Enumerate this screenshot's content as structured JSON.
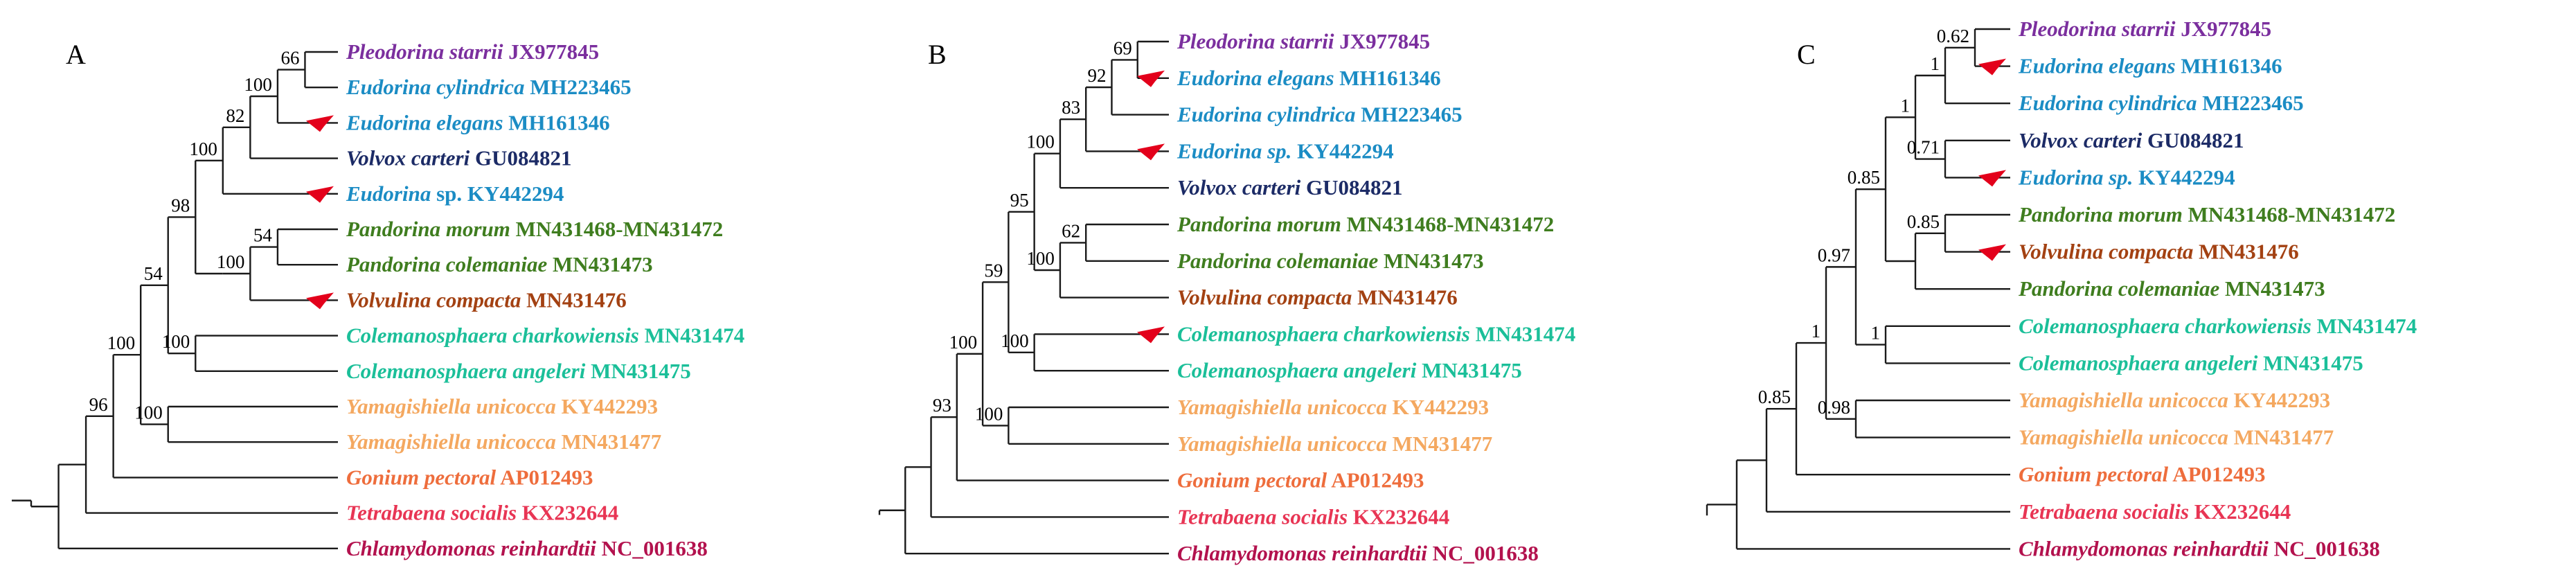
{
  "colors": {
    "pleodorina": "#7b2f9e",
    "eudorina": "#1b8cc4",
    "volvox": "#1c2b66",
    "pandorina": "#3f7d1f",
    "volvulina": "#a34112",
    "colemanosphaera": "#1bbf99",
    "yamagishiella": "#f4a860",
    "gonium": "#ee6d3c",
    "tetrabaena": "#e83554",
    "chlamydomonas": "#b3124e",
    "arrow": "#e3001b"
  },
  "taxa": {
    "pleodorina_starrii": {
      "species": "Pleodorina starrii",
      "accession": "JX977845",
      "color_key": "pleodorina"
    },
    "eudorina_cylindrica": {
      "species": "Eudorina cylindrica",
      "accession": "MH223465",
      "color_key": "eudorina"
    },
    "eudorina_elegans": {
      "species": "Eudorina elegans",
      "accession": "MH161346",
      "color_key": "eudorina"
    },
    "volvox_carteri": {
      "species": "Volvox carteri",
      "accession": "GU084821",
      "color_key": "volvox"
    },
    "eudorina_sp_a": {
      "species": "Eudorina",
      "accession": "sp. KY442294",
      "color_key": "eudorina"
    },
    "eudorina_sp_bc": {
      "species": "Eudorina sp.",
      "accession": "KY442294",
      "color_key": "eudorina"
    },
    "pandorina_morum": {
      "species": "Pandorina morum",
      "accession": "MN431468-MN431472",
      "color_key": "pandorina"
    },
    "pandorina_colemaniae": {
      "species": "Pandorina colemaniae",
      "accession": "MN431473",
      "color_key": "pandorina"
    },
    "volvulina_compacta": {
      "species": "Volvulina compacta",
      "accession": "MN431476",
      "color_key": "volvulina"
    },
    "colemanosphaera_charkowiensis": {
      "species": "Colemanosphaera charkowiensis",
      "accession": "MN431474",
      "color_key": "colemanosphaera"
    },
    "colemanosphaera_angeleri": {
      "species": "Colemanosphaera angeleri",
      "accession": "MN431475",
      "color_key": "colemanosphaera"
    },
    "yamagishiella_kyl": {
      "species": "Yamagishiella unicocca",
      "accession": "KY442293",
      "color_key": "yamagishiella"
    },
    "yamagishiella_mn": {
      "species": "Yamagishiella unicocca",
      "accession": "MN431477",
      "color_key": "yamagishiella"
    },
    "gonium_pectoral": {
      "species": "Gonium pectoral",
      "accession": "AP012493",
      "color_key": "gonium"
    },
    "tetrabaena_socialis": {
      "species": "Tetrabaena socialis",
      "accession": "KX232644",
      "color_key": "tetrabaena"
    },
    "chlamydomonas_reinhardtii": {
      "species": "Chlamydomonas reinhardtii",
      "accession": "NC_001638",
      "color_key": "chlamydomonas"
    }
  },
  "panels": [
    {
      "id": "A",
      "label": "A",
      "tips": [
        "pleodorina_starrii",
        "eudorina_cylindrica",
        "eudorina_elegans",
        "volvox_carteri",
        "eudorina_sp_a",
        "pandorina_morum",
        "pandorina_colemaniae",
        "volvulina_compacta",
        "colemanosphaera_charkowiensis",
        "colemanosphaera_angeleri",
        "yamagishiella_kyl",
        "yamagishiella_mn",
        "gonium_pectoral",
        "tetrabaena_socialis",
        "chlamydomonas_reinhardtii"
      ],
      "marked_tips": [
        2,
        4,
        7
      ],
      "has_root_stub": true,
      "tree": {
        "children": [
          {
            "children": [
              {
                "children": [
                  {
                    "support": "96",
                    "children": [
                      {
                        "support": "100",
                        "children": [
                          {
                            "support": "54",
                            "children": [
                              {
                                "support": "98",
                                "children": [
                                  {
                                    "support": "100",
                                    "children": [
                                      {
                                        "support": "82",
                                        "children": [
                                          {
                                            "support": "100",
                                            "children": [
                                              {
                                                "support": "66",
                                                "children": [
                                                  {
                                                    "tip": 0
                                                  },
                                                  {
                                                    "tip": 1
                                                  }
                                                ]
                                              },
                                              {
                                                "tip": 2
                                              }
                                            ]
                                          },
                                          {
                                            "tip": 3
                                          }
                                        ]
                                      },
                                      {
                                        "tip": 4
                                      }
                                    ]
                                  },
                                  {
                                    "children": [
                                      {
                                        "support": "100",
                                        "children": [
                                          {
                                            "support": "54",
                                            "children": [
                                              {
                                                "tip": 5
                                              },
                                              {
                                                "tip": 6
                                              }
                                            ]
                                          },
                                          {
                                            "tip": 7
                                          }
                                        ]
                                      }
                                    ]
                                  }
                                ]
                              },
                              {
                                "support": "100",
                                "children": [
                                  {
                                    "tip": 8
                                  },
                                  {
                                    "tip": 9
                                  }
                                ]
                              }
                            ]
                          },
                          {
                            "support": "100",
                            "children": [
                              {
                                "tip": 10
                              },
                              {
                                "tip": 11
                              }
                            ]
                          }
                        ]
                      },
                      {
                        "tip": 12
                      }
                    ]
                  },
                  {
                    "tip": 13
                  }
                ]
              },
              {
                "tip": 14
              }
            ]
          }
        ]
      }
    },
    {
      "id": "B",
      "label": "B",
      "tips": [
        "pleodorina_starrii",
        "eudorina_elegans",
        "eudorina_cylindrica",
        "eudorina_sp_bc",
        "volvox_carteri",
        "pandorina_morum",
        "pandorina_colemaniae",
        "volvulina_compacta",
        "colemanosphaera_charkowiensis",
        "colemanosphaera_angeleri",
        "yamagishiella_kyl",
        "yamagishiella_mn",
        "gonium_pectoral",
        "tetrabaena_socialis",
        "chlamydomonas_reinhardtii"
      ],
      "marked_tips": [
        1,
        3,
        8
      ],
      "has_root_stub": false,
      "tree": {
        "children": [
          {
            "children": [
              {
                "children": [
                  {
                    "support": "93",
                    "children": [
                      {
                        "support": "100",
                        "children": [
                          {
                            "support": "59",
                            "children": [
                              {
                                "support": "95",
                                "children": [
                                  {
                                    "support": "100",
                                    "children": [
                                      {
                                        "support": "83",
                                        "children": [
                                          {
                                            "support": "92",
                                            "children": [
                                              {
                                                "support": "69",
                                                "children": [
                                                  {
                                                    "tip": 0
                                                  },
                                                  {
                                                    "tip": 1
                                                  }
                                                ]
                                              },
                                              {
                                                "tip": 2
                                              }
                                            ]
                                          },
                                          {
                                            "tip": 3
                                          }
                                        ]
                                      },
                                      {
                                        "tip": 4
                                      }
                                    ]
                                  },
                                  {
                                    "support": "100",
                                    "children": [
                                      {
                                        "support": "62",
                                        "children": [
                                          {
                                            "tip": 5
                                          },
                                          {
                                            "tip": 6
                                          }
                                        ]
                                      },
                                      {
                                        "tip": 7
                                      }
                                    ]
                                  }
                                ]
                              },
                              {
                                "support": "100",
                                "children": [
                                  {
                                    "tip": 8
                                  },
                                  {
                                    "tip": 9
                                  }
                                ]
                              }
                            ]
                          },
                          {
                            "support": "100",
                            "children": [
                              {
                                "tip": 10
                              },
                              {
                                "tip": 11
                              }
                            ]
                          }
                        ]
                      },
                      {
                        "tip": 12
                      }
                    ]
                  },
                  {
                    "tip": 13
                  }
                ]
              },
              {
                "tip": 14
              }
            ]
          }
        ]
      }
    },
    {
      "id": "C",
      "label": "C",
      "tips": [
        "pleodorina_starrii",
        "eudorina_elegans",
        "eudorina_cylindrica",
        "volvox_carteri",
        "eudorina_sp_bc",
        "pandorina_morum",
        "volvulina_compacta",
        "pandorina_colemaniae",
        "colemanosphaera_charkowiensis",
        "colemanosphaera_angeleri",
        "yamagishiella_kyl",
        "yamagishiella_mn",
        "gonium_pectoral",
        "tetrabaena_socialis",
        "chlamydomonas_reinhardtii"
      ],
      "marked_tips": [
        1,
        4,
        6
      ],
      "has_root_stub": false,
      "tree": {
        "children": [
          {
            "children": [
              {
                "children": [
                  {
                    "support": "0.85",
                    "children": [
                      {
                        "support": "1",
                        "children": [
                          {
                            "support": "0.97",
                            "children": [
                              {
                                "support": "0.85",
                                "children": [
                                  {
                                    "support": "1",
                                    "children": [
                                      {
                                        "support": "1",
                                        "children": [
                                          {
                                            "support": "0.62",
                                            "children": [
                                              {
                                                "tip": 0
                                              },
                                              {
                                                "tip": 1
                                              }
                                            ]
                                          },
                                          {
                                            "tip": 2
                                          }
                                        ]
                                      },
                                      {
                                        "support": "0.71",
                                        "children": [
                                          {
                                            "tip": 3
                                          },
                                          {
                                            "tip": 4
                                          }
                                        ]
                                      }
                                    ]
                                  },
                                  {
                                    "children": [
                                      {
                                        "support": "0.85",
                                        "children": [
                                          {
                                            "tip": 5
                                          },
                                          {
                                            "tip": 6
                                          }
                                        ]
                                      },
                                      {
                                        "tip": 7
                                      }
                                    ]
                                  }
                                ]
                              },
                              {
                                "support": "1",
                                "children": [
                                  {
                                    "tip": 8
                                  },
                                  {
                                    "tip": 9
                                  }
                                ]
                              }
                            ]
                          },
                          {
                            "support": "0.98",
                            "children": [
                              {
                                "tip": 10
                              },
                              {
                                "tip": 11
                              }
                            ]
                          }
                        ]
                      },
                      {
                        "tip": 12
                      }
                    ]
                  },
                  {
                    "tip": 13
                  }
                ]
              },
              {
                "tip": 14
              }
            ]
          }
        ]
      }
    }
  ]
}
